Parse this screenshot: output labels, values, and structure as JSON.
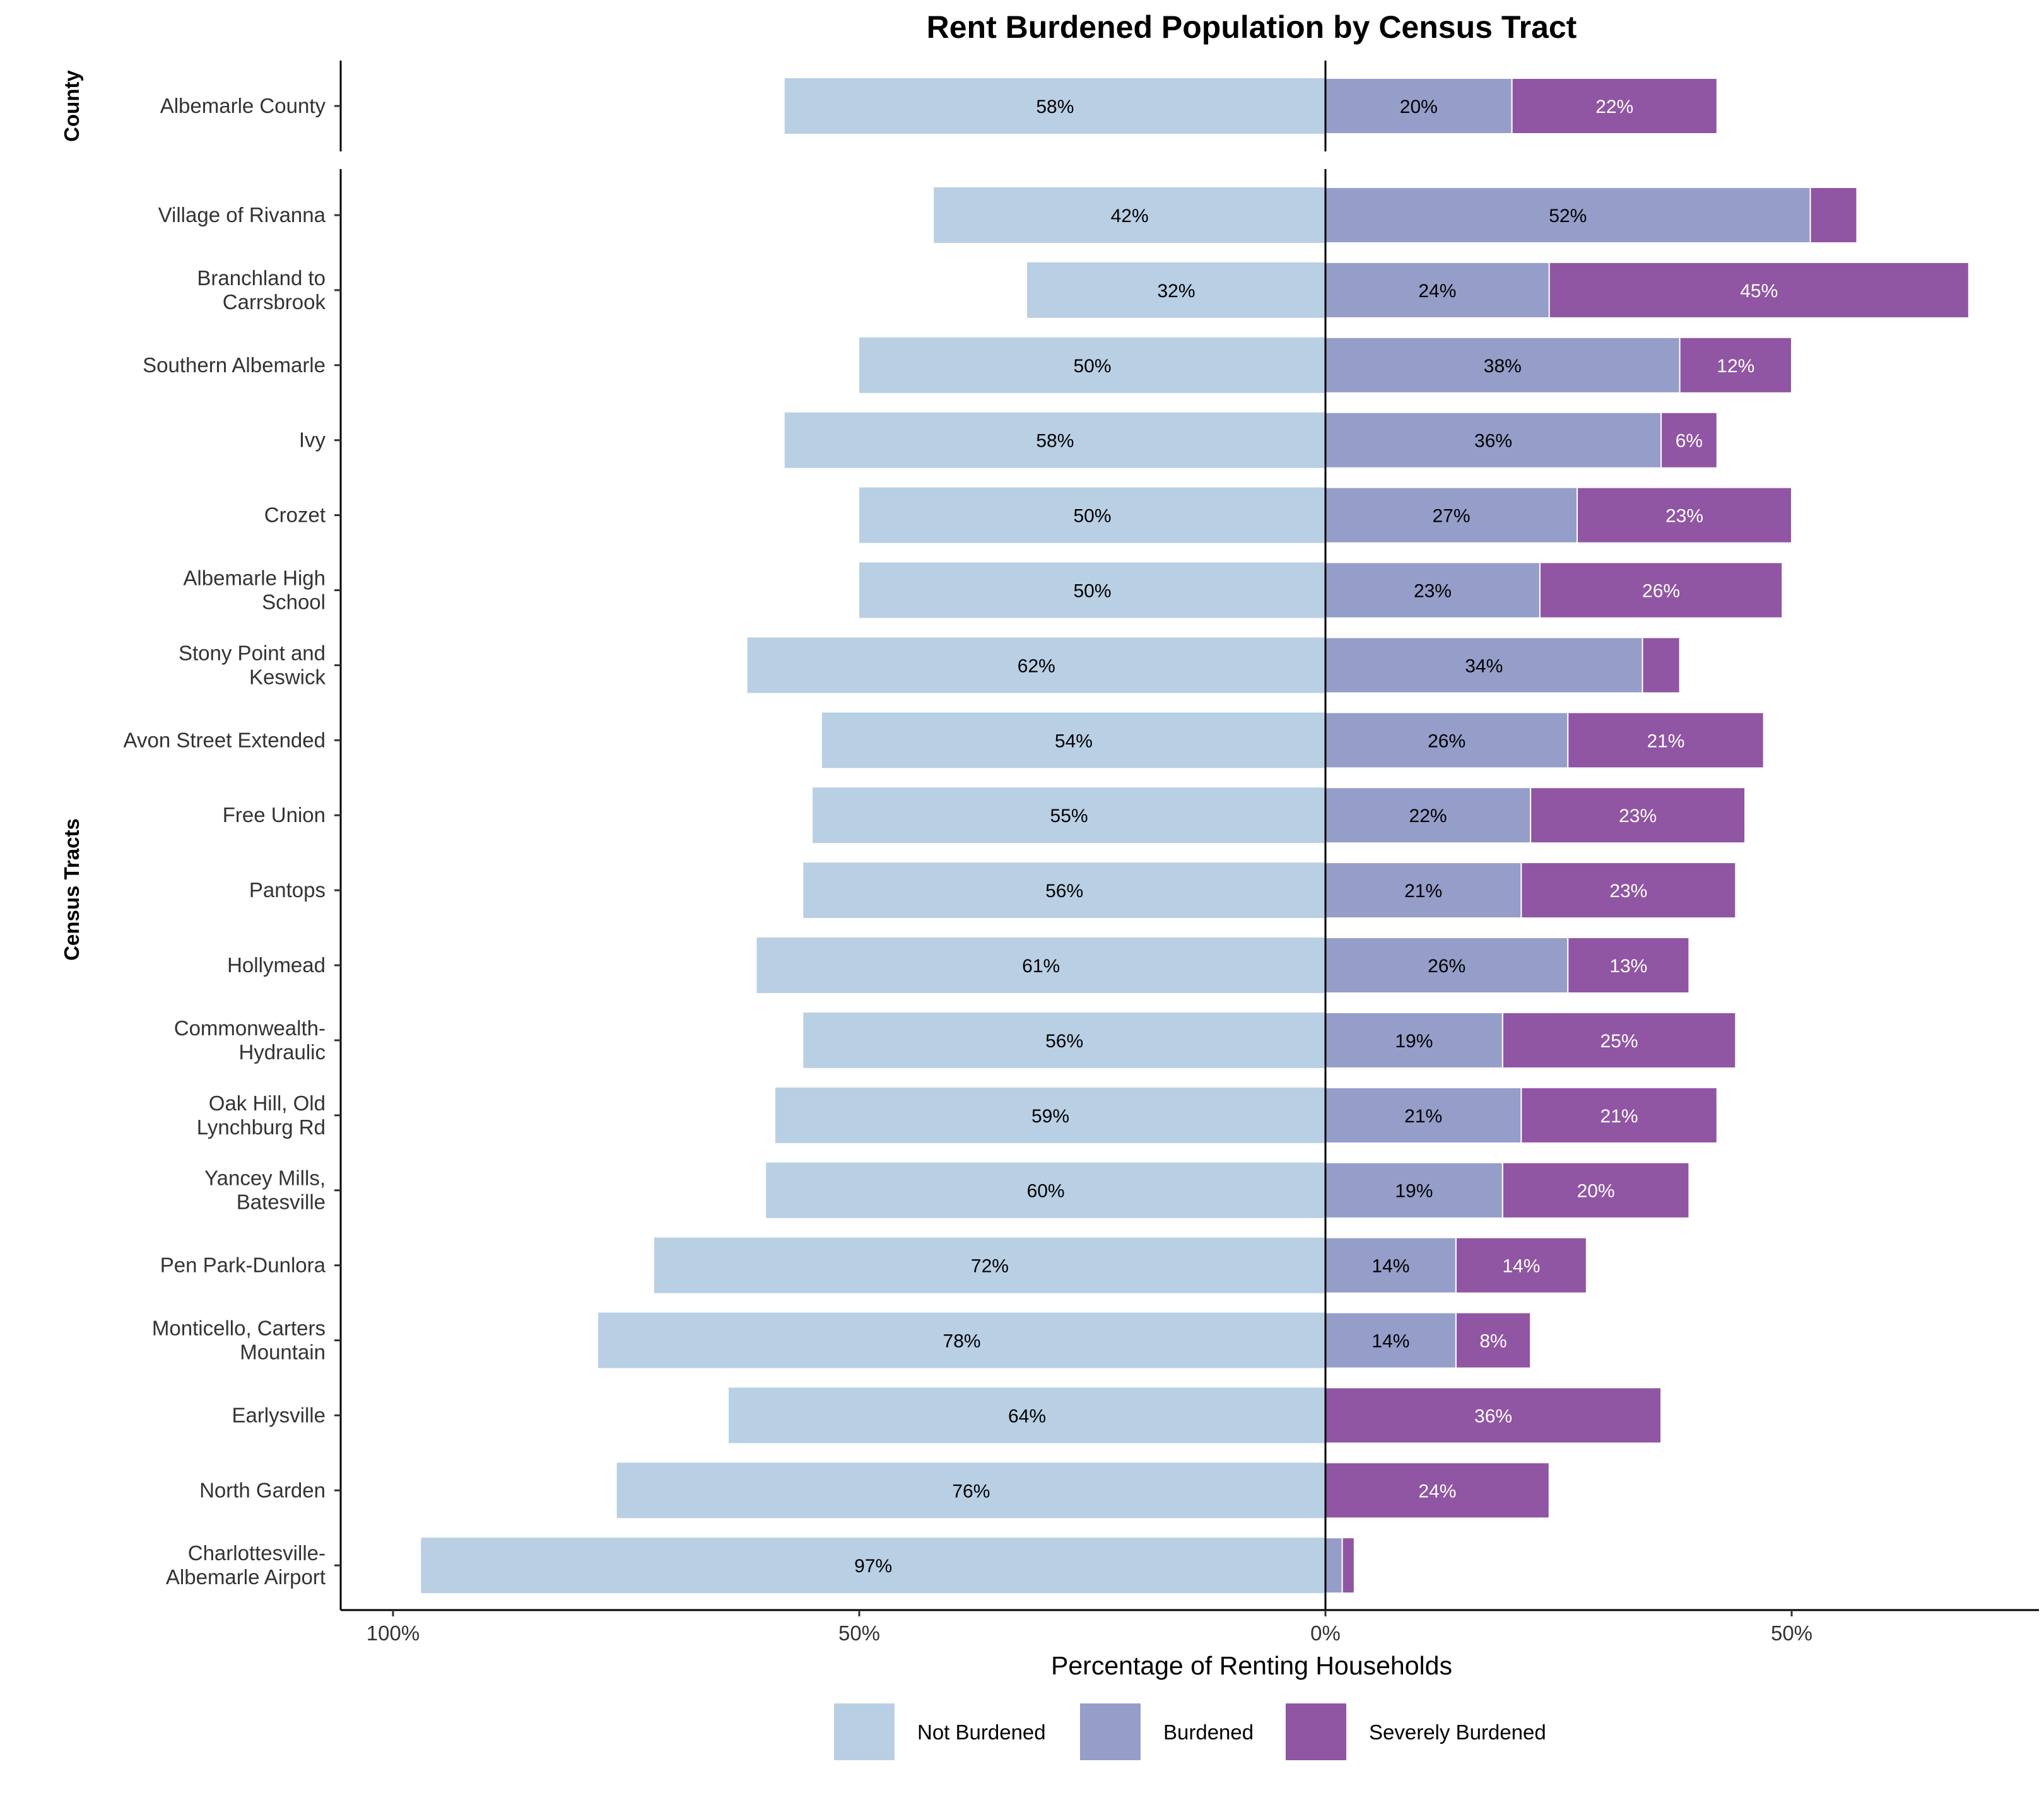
{
  "chart_data": {
    "type": "bar",
    "orientation": "horizontal-diverging",
    "title": "Rent Burdened Population by Census Tract",
    "xlabel": "Percentage of Renting Households",
    "x_ticks": [
      "100%",
      "50%",
      "0%",
      "50%"
    ],
    "x_tick_values": [
      -100,
      -50,
      0,
      50
    ],
    "xlim": [
      -105,
      77
    ],
    "legend": {
      "placement": "bottom",
      "entries": [
        "Not Burdened",
        "Burdened",
        "Severely Burdened"
      ]
    },
    "colors": {
      "Not Burdened": "#b9cfe4",
      "Burdened": "#959dc9",
      "Severely Burdened": "#9055a3"
    },
    "label_colors": {
      "Not Burdened": "#000000",
      "Burdened": "#000000",
      "Severely Burdened": "#ffffff"
    },
    "panels": [
      {
        "name": "County",
        "rows": [
          {
            "label": [
              "Albemarle County"
            ],
            "not_burdened": 58,
            "burdened": 20,
            "severely_burdened": 22,
            "labels": [
              "58%",
              "20%",
              "22%"
            ]
          }
        ]
      },
      {
        "name": "Census Tracts",
        "rows": [
          {
            "label": [
              "Village of Rivanna"
            ],
            "not_burdened": 42,
            "burdened": 52,
            "severely_burdened": 5,
            "labels": [
              "42%",
              "52%",
              ""
            ]
          },
          {
            "label": [
              "Branchland to",
              "Carrsbrook"
            ],
            "not_burdened": 32,
            "burdened": 24,
            "severely_burdened": 45,
            "labels": [
              "32%",
              "24%",
              "45%"
            ]
          },
          {
            "label": [
              "Southern Albemarle"
            ],
            "not_burdened": 50,
            "burdened": 38,
            "severely_burdened": 12,
            "labels": [
              "50%",
              "38%",
              "12%"
            ]
          },
          {
            "label": [
              "Ivy"
            ],
            "not_burdened": 58,
            "burdened": 36,
            "severely_burdened": 6,
            "labels": [
              "58%",
              "36%",
              "6%"
            ]
          },
          {
            "label": [
              "Crozet"
            ],
            "not_burdened": 50,
            "burdened": 27,
            "severely_burdened": 23,
            "labels": [
              "50%",
              "27%",
              "23%"
            ]
          },
          {
            "label": [
              "Albemarle High",
              "School"
            ],
            "not_burdened": 50,
            "burdened": 23,
            "severely_burdened": 26,
            "labels": [
              "50%",
              "23%",
              "26%"
            ]
          },
          {
            "label": [
              "Stony Point and",
              "Keswick"
            ],
            "not_burdened": 62,
            "burdened": 34,
            "severely_burdened": 4,
            "labels": [
              "62%",
              "34%",
              ""
            ]
          },
          {
            "label": [
              "Avon Street Extended"
            ],
            "not_burdened": 54,
            "burdened": 26,
            "severely_burdened": 21,
            "labels": [
              "54%",
              "26%",
              "21%"
            ]
          },
          {
            "label": [
              "Free Union"
            ],
            "not_burdened": 55,
            "burdened": 22,
            "severely_burdened": 23,
            "labels": [
              "55%",
              "22%",
              "23%"
            ]
          },
          {
            "label": [
              "Pantops"
            ],
            "not_burdened": 56,
            "burdened": 21,
            "severely_burdened": 23,
            "labels": [
              "56%",
              "21%",
              "23%"
            ]
          },
          {
            "label": [
              "Hollymead"
            ],
            "not_burdened": 61,
            "burdened": 26,
            "severely_burdened": 13,
            "labels": [
              "61%",
              "26%",
              "13%"
            ]
          },
          {
            "label": [
              "Commonwealth-",
              "Hydraulic"
            ],
            "not_burdened": 56,
            "burdened": 19,
            "severely_burdened": 25,
            "labels": [
              "56%",
              "19%",
              "25%"
            ]
          },
          {
            "label": [
              "Oak Hill, Old",
              "Lynchburg Rd"
            ],
            "not_burdened": 59,
            "burdened": 21,
            "severely_burdened": 21,
            "labels": [
              "59%",
              "21%",
              "21%"
            ]
          },
          {
            "label": [
              "Yancey Mills,",
              "Batesville"
            ],
            "not_burdened": 60,
            "burdened": 19,
            "severely_burdened": 20,
            "labels": [
              "60%",
              "19%",
              "20%"
            ]
          },
          {
            "label": [
              "Pen Park-Dunlora"
            ],
            "not_burdened": 72,
            "burdened": 14,
            "severely_burdened": 14,
            "labels": [
              "72%",
              "14%",
              "14%"
            ]
          },
          {
            "label": [
              "Monticello, Carters",
              "Mountain"
            ],
            "not_burdened": 78,
            "burdened": 14,
            "severely_burdened": 8,
            "labels": [
              "78%",
              "14%",
              "8%"
            ]
          },
          {
            "label": [
              "Earlysville"
            ],
            "not_burdened": 64,
            "burdened": 0,
            "severely_burdened": 36,
            "labels": [
              "64%",
              "",
              "36%"
            ]
          },
          {
            "label": [
              "North Garden"
            ],
            "not_burdened": 76,
            "burdened": 0,
            "severely_burdened": 24,
            "labels": [
              "76%",
              "",
              "24%"
            ]
          },
          {
            "label": [
              "Charlottesville-",
              "Albemarle Airport"
            ],
            "not_burdened": 97,
            "burdened": 1.8,
            "severely_burdened": 1.3,
            "labels": [
              "97%",
              "",
              ""
            ]
          }
        ]
      }
    ]
  }
}
